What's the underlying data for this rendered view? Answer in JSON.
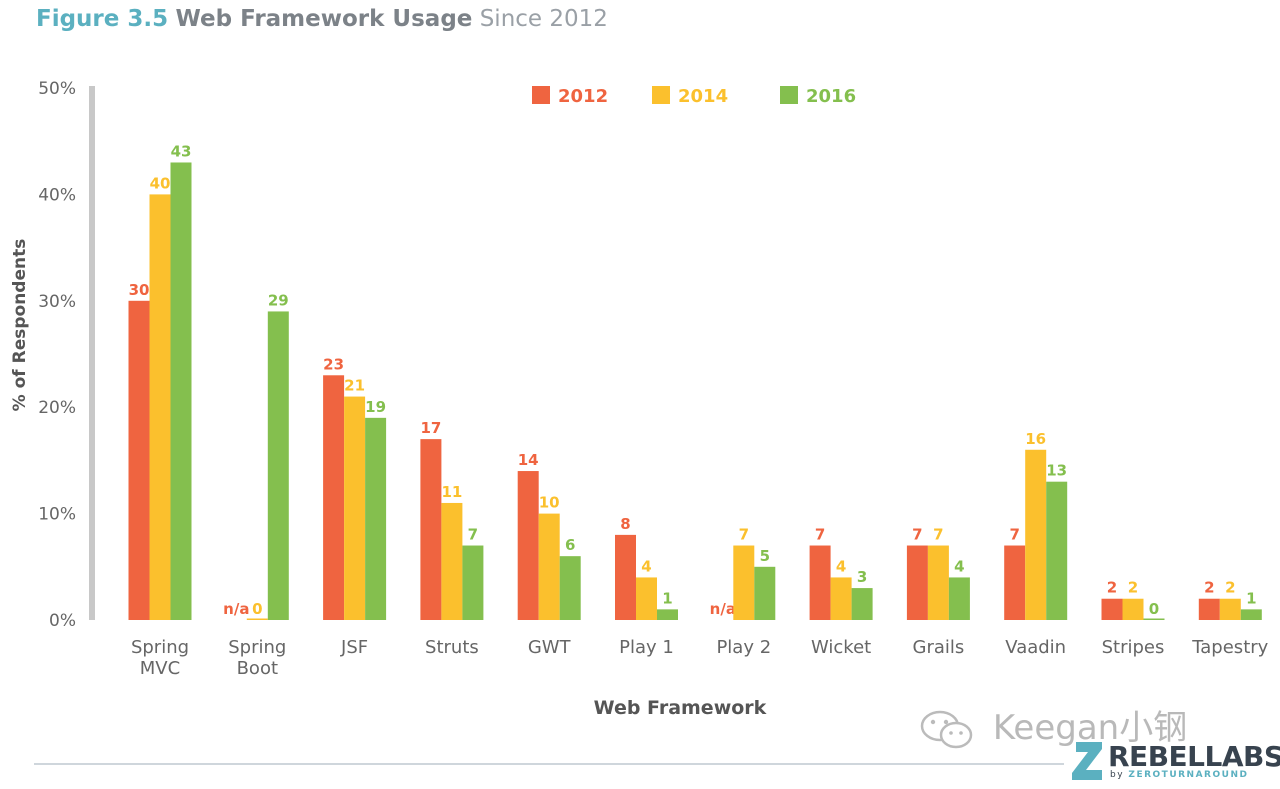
{
  "header": {
    "figure_label": "Figure 3.5",
    "main_title": "Web Framework Usage",
    "subtitle": "Since 2012"
  },
  "watermark": {
    "text": "Keegan小钢",
    "icon": "wechat-icon"
  },
  "logo": {
    "name": "REBELLABS",
    "by": "by",
    "company": "ZEROTURNAROUND",
    "icon": "rebellabs-z-icon"
  },
  "colors": {
    "2012": "#ef6440",
    "2014": "#fbc02d",
    "2016": "#84bf4e",
    "axis": "#c8c8c8",
    "text": "#555555"
  },
  "chart_data": {
    "type": "bar",
    "xlabel": "Web Framework",
    "ylabel": "% of Respondents",
    "ylim": [
      0,
      50
    ],
    "yticks": [
      "0%",
      "10%",
      "20%",
      "30%",
      "40%",
      "50%"
    ],
    "categories": [
      "Spring MVC",
      "Spring Boot",
      "JSF",
      "Struts",
      "GWT",
      "Play 1",
      "Play 2",
      "Wicket",
      "Grails",
      "Vaadin",
      "Stripes",
      "Tapestry"
    ],
    "category_lines": [
      [
        "Spring",
        "MVC"
      ],
      [
        "Spring",
        "Boot"
      ],
      [
        "JSF"
      ],
      [
        "Struts"
      ],
      [
        "GWT"
      ],
      [
        "Play 1"
      ],
      [
        "Play 2"
      ],
      [
        "Wicket"
      ],
      [
        "Grails"
      ],
      [
        "Vaadin"
      ],
      [
        "Stripes"
      ],
      [
        "Tapestry"
      ]
    ],
    "legend_position": "top",
    "series": [
      {
        "name": "2012",
        "values": [
          30,
          null,
          23,
          17,
          14,
          8,
          null,
          7,
          7,
          7,
          2,
          2
        ],
        "labels": [
          "30",
          "n/a",
          "23",
          "17",
          "14",
          "8",
          "n/a",
          "7",
          "7",
          "7",
          "2",
          "2"
        ]
      },
      {
        "name": "2014",
        "values": [
          40,
          0,
          21,
          11,
          10,
          4,
          7,
          4,
          7,
          16,
          2,
          2
        ],
        "labels": [
          "40",
          "0",
          "21",
          "11",
          "10",
          "4",
          "7",
          "4",
          "7",
          "16",
          "2",
          "2"
        ]
      },
      {
        "name": "2016",
        "values": [
          43,
          29,
          19,
          7,
          6,
          1,
          5,
          3,
          4,
          13,
          0,
          1
        ],
        "labels": [
          "43",
          "29",
          "19",
          "7",
          "6",
          "1",
          "5",
          "3",
          "4",
          "13",
          "0",
          "1"
        ]
      }
    ]
  }
}
